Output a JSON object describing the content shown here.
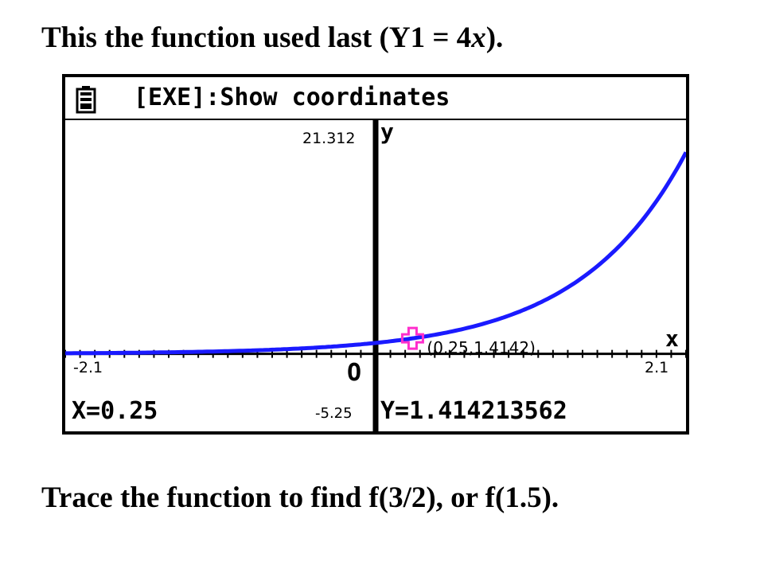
{
  "slide": {
    "title": "This the function used last (Y1 = 4x).",
    "caption": "Trace the function to find f(3/2), or f(1.5)."
  },
  "calculator": {
    "status_text": "[EXE]:Show coordinates",
    "status_icon": "battery-icon",
    "graph": {
      "x_min_label": "-2.1",
      "x_max_label": "2.1",
      "y_max_label": "21.312",
      "y_min_label": "-5.25",
      "x_axis_letter": "x",
      "y_axis_letter": "y",
      "origin_letter": "O",
      "curve_color": "#1a1aff",
      "cursor_color": "#ff2ecc"
    },
    "trace_label": "(0.25,1.4142)",
    "readout_x": "X=0.25",
    "readout_y": "Y=1.414213562"
  },
  "chart_data": {
    "type": "line",
    "function": "4^x",
    "xlim": [
      -2.1,
      2.1
    ],
    "ylim": [
      -5.25,
      21.312
    ],
    "traced_point": {
      "x": 0.25,
      "y": 1.4142
    }
  }
}
